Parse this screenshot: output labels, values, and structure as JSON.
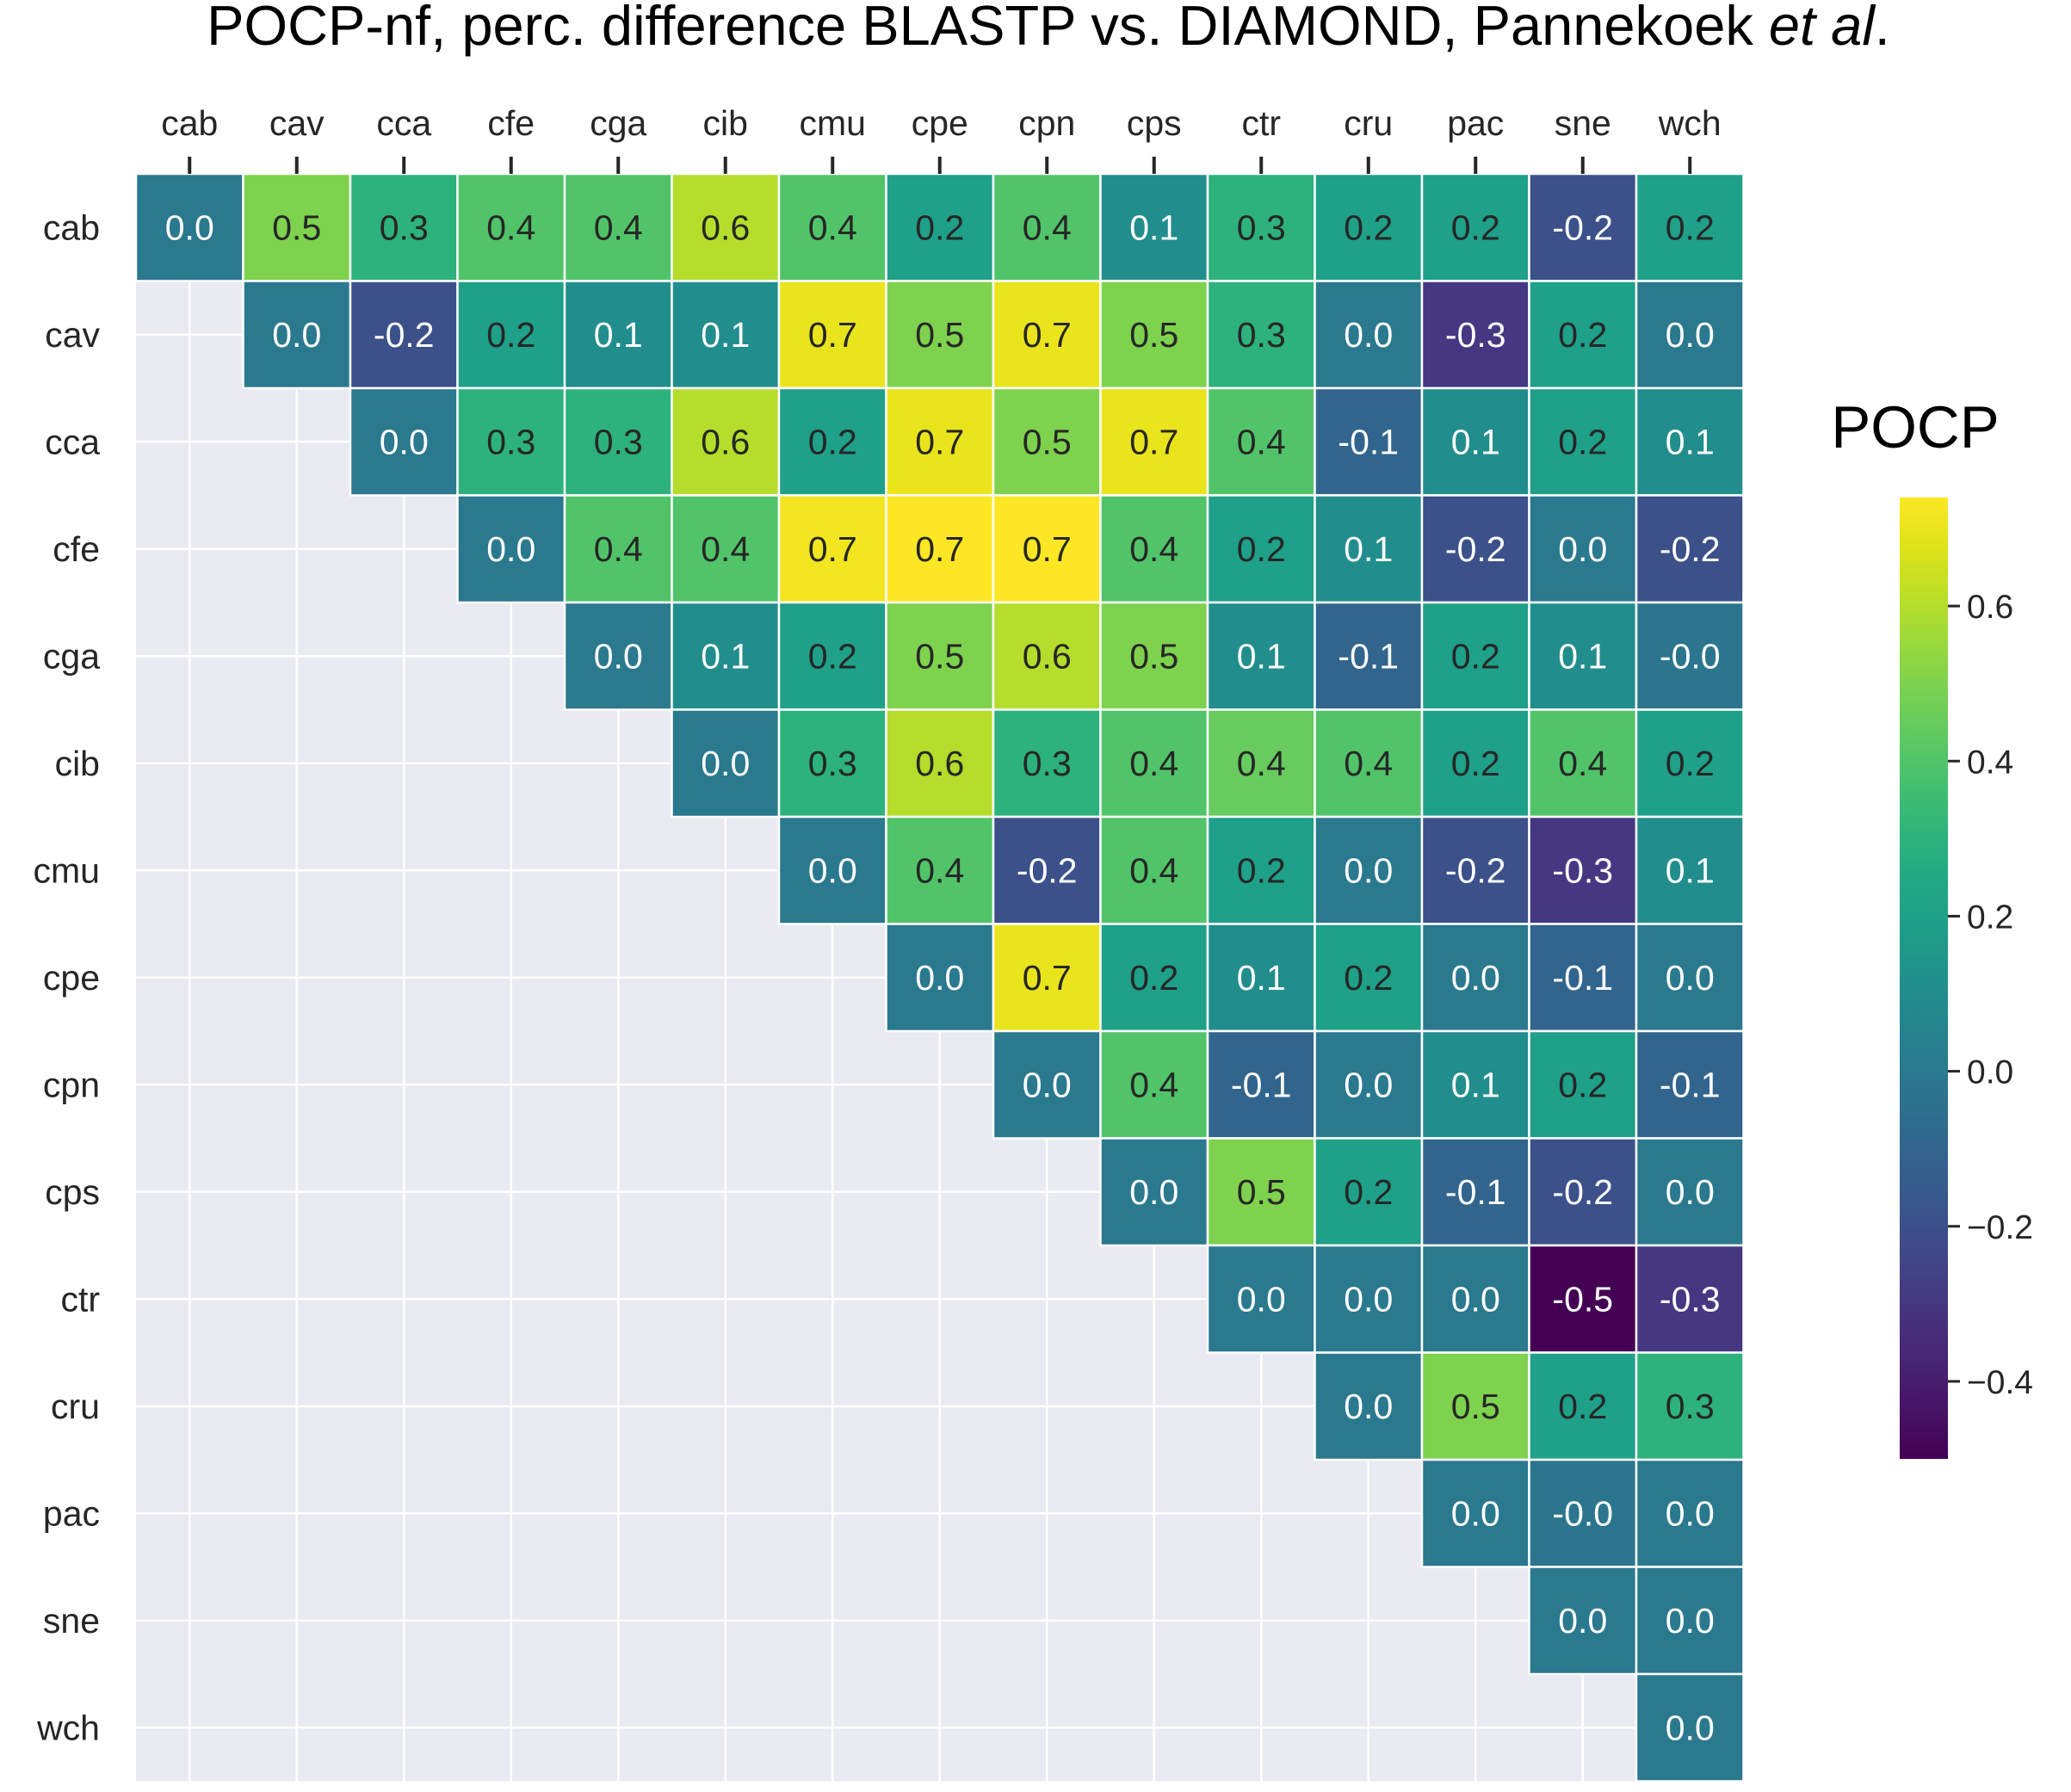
{
  "chart_data": {
    "type": "heatmap",
    "title": {
      "prefix": "POCP-nf, perc. difference BLASTP vs. DIAMOND, Pannekoek ",
      "italic": "et al",
      "suffix": "."
    },
    "rows": [
      "cab",
      "cav",
      "cca",
      "cfe",
      "cga",
      "cib",
      "cmu",
      "cpe",
      "cpn",
      "cps",
      "ctr",
      "cru",
      "pac",
      "sne",
      "wch"
    ],
    "columns": [
      "cab",
      "cav",
      "cca",
      "cfe",
      "cga",
      "cib",
      "cmu",
      "cpe",
      "cpn",
      "cps",
      "ctr",
      "cru",
      "pac",
      "sne",
      "wch"
    ],
    "cell_labels": [
      [
        "0.0",
        "0.5",
        "0.3",
        "0.4",
        "0.4",
        "0.6",
        "0.4",
        "0.2",
        "0.4",
        "0.1",
        "0.3",
        "0.2",
        "0.2",
        "-0.2",
        "0.2"
      ],
      [
        null,
        "0.0",
        "-0.2",
        "0.2",
        "0.1",
        "0.1",
        "0.7",
        "0.5",
        "0.7",
        "0.5",
        "0.3",
        "0.0",
        "-0.3",
        "0.2",
        "0.0"
      ],
      [
        null,
        null,
        "0.0",
        "0.3",
        "0.3",
        "0.6",
        "0.2",
        "0.7",
        "0.5",
        "0.7",
        "0.4",
        "-0.1",
        "0.1",
        "0.2",
        "0.1"
      ],
      [
        null,
        null,
        null,
        "0.0",
        "0.4",
        "0.4",
        "0.7",
        "0.7",
        "0.7",
        "0.4",
        "0.2",
        "0.1",
        "-0.2",
        "0.0",
        "-0.2"
      ],
      [
        null,
        null,
        null,
        null,
        "0.0",
        "0.1",
        "0.2",
        "0.5",
        "0.6",
        "0.5",
        "0.1",
        "-0.1",
        "0.2",
        "0.1",
        "-0.0"
      ],
      [
        null,
        null,
        null,
        null,
        null,
        "0.0",
        "0.3",
        "0.6",
        "0.3",
        "0.4",
        "0.4",
        "0.4",
        "0.2",
        "0.4",
        "0.2"
      ],
      [
        null,
        null,
        null,
        null,
        null,
        null,
        "0.0",
        "0.4",
        "-0.2",
        "0.4",
        "0.2",
        "0.0",
        "-0.2",
        "-0.3",
        "0.1"
      ],
      [
        null,
        null,
        null,
        null,
        null,
        null,
        null,
        "0.0",
        "0.7",
        "0.2",
        "0.1",
        "0.2",
        "0.0",
        "-0.1",
        "0.0"
      ],
      [
        null,
        null,
        null,
        null,
        null,
        null,
        null,
        null,
        "0.0",
        "0.4",
        "-0.1",
        "0.0",
        "0.1",
        "0.2",
        "-0.1"
      ],
      [
        null,
        null,
        null,
        null,
        null,
        null,
        null,
        null,
        null,
        "0.0",
        "0.5",
        "0.2",
        "-0.1",
        "-0.2",
        "0.0"
      ],
      [
        null,
        null,
        null,
        null,
        null,
        null,
        null,
        null,
        null,
        null,
        "0.0",
        "0.0",
        "0.0",
        "-0.5",
        "-0.3"
      ],
      [
        null,
        null,
        null,
        null,
        null,
        null,
        null,
        null,
        null,
        null,
        null,
        "0.0",
        "0.5",
        "0.2",
        "0.3"
      ],
      [
        null,
        null,
        null,
        null,
        null,
        null,
        null,
        null,
        null,
        null,
        null,
        null,
        "0.0",
        "-0.0",
        "0.0"
      ],
      [
        null,
        null,
        null,
        null,
        null,
        null,
        null,
        null,
        null,
        null,
        null,
        null,
        null,
        "0.0",
        "0.0"
      ],
      [
        null,
        null,
        null,
        null,
        null,
        null,
        null,
        null,
        null,
        null,
        null,
        null,
        null,
        null,
        "0.0"
      ]
    ],
    "values": [
      [
        0.0,
        0.5,
        0.3,
        0.4,
        0.4,
        0.6,
        0.4,
        0.2,
        0.4,
        0.1,
        0.3,
        0.2,
        0.2,
        -0.2,
        0.2
      ],
      [
        null,
        0.0,
        -0.2,
        0.2,
        0.1,
        0.1,
        0.7,
        0.5,
        0.7,
        0.5,
        0.3,
        0.0,
        -0.3,
        0.2,
        0.0
      ],
      [
        null,
        null,
        0.0,
        0.3,
        0.3,
        0.6,
        0.2,
        0.7,
        0.5,
        0.7,
        0.4,
        -0.1,
        0.1,
        0.2,
        0.1
      ],
      [
        null,
        null,
        null,
        0.0,
        0.4,
        0.4,
        0.72,
        0.74,
        0.74,
        0.4,
        0.2,
        0.1,
        -0.2,
        0.0,
        -0.2
      ],
      [
        null,
        null,
        null,
        null,
        0.0,
        0.1,
        0.2,
        0.5,
        0.6,
        0.5,
        0.1,
        -0.1,
        0.2,
        0.1,
        -0.02
      ],
      [
        null,
        null,
        null,
        null,
        null,
        0.0,
        0.3,
        0.6,
        0.3,
        0.4,
        0.45,
        0.4,
        0.2,
        0.4,
        0.2
      ],
      [
        null,
        null,
        null,
        null,
        null,
        null,
        0.0,
        0.4,
        -0.2,
        0.4,
        0.2,
        0.0,
        -0.2,
        -0.3,
        0.1
      ],
      [
        null,
        null,
        null,
        null,
        null,
        null,
        null,
        0.0,
        0.7,
        0.2,
        0.1,
        0.2,
        0.0,
        -0.1,
        0.0
      ],
      [
        null,
        null,
        null,
        null,
        null,
        null,
        null,
        null,
        0.0,
        0.4,
        -0.1,
        0.0,
        0.1,
        0.2,
        -0.1
      ],
      [
        null,
        null,
        null,
        null,
        null,
        null,
        null,
        null,
        null,
        0.0,
        0.5,
        0.2,
        -0.1,
        -0.2,
        0.0
      ],
      [
        null,
        null,
        null,
        null,
        null,
        null,
        null,
        null,
        null,
        null,
        0.0,
        0.0,
        0.0,
        -0.5,
        -0.3
      ],
      [
        null,
        null,
        null,
        null,
        null,
        null,
        null,
        null,
        null,
        null,
        null,
        0.0,
        0.5,
        0.2,
        0.3
      ],
      [
        null,
        null,
        null,
        null,
        null,
        null,
        null,
        null,
        null,
        null,
        null,
        null,
        0.0,
        -0.02,
        0.0
      ],
      [
        null,
        null,
        null,
        null,
        null,
        null,
        null,
        null,
        null,
        null,
        null,
        null,
        null,
        0.0,
        0.0
      ],
      [
        null,
        null,
        null,
        null,
        null,
        null,
        null,
        null,
        null,
        null,
        null,
        null,
        null,
        null,
        0.0
      ]
    ],
    "colormap": "viridis",
    "vmin": -0.5,
    "vmax": 0.74,
    "colorbar": {
      "label": "POCP",
      "ticks": [
        0.6,
        0.4,
        0.2,
        0.0,
        -0.2,
        -0.4
      ],
      "tick_labels": [
        "0.6",
        "0.4",
        "0.2",
        "0.0",
        "−0.2",
        "−0.4"
      ]
    },
    "x_axis_position": "top",
    "grid": true,
    "empty_cell_color": "#eaeaf2"
  }
}
